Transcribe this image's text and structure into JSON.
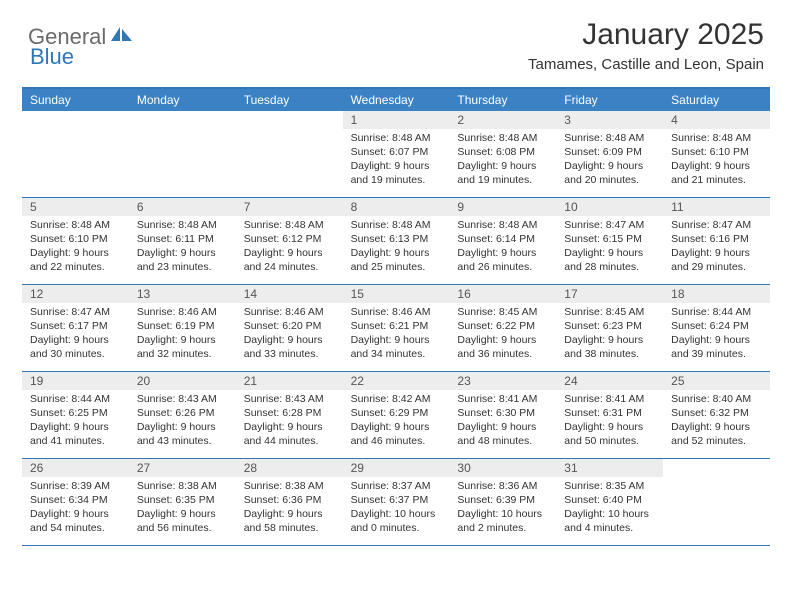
{
  "logo": {
    "text1": "General",
    "text2": "Blue",
    "color1": "#6b6b6b",
    "color2": "#2f77b6"
  },
  "header": {
    "month_title": "January 2025",
    "location": "Tamames, Castille and Leon, Spain"
  },
  "calendar": {
    "weekday_bg": "#3a82c4",
    "weekday_fg": "#ffffff",
    "border_color": "#2f77b6",
    "daynum_bg": "#ededed",
    "text_color": "#333333",
    "weekdays": [
      "Sunday",
      "Monday",
      "Tuesday",
      "Wednesday",
      "Thursday",
      "Friday",
      "Saturday"
    ],
    "weeks": [
      [
        {
          "empty": true
        },
        {
          "empty": true
        },
        {
          "empty": true
        },
        {
          "num": "1",
          "l1": "Sunrise: 8:48 AM",
          "l2": "Sunset: 6:07 PM",
          "l3": "Daylight: 9 hours",
          "l4": "and 19 minutes."
        },
        {
          "num": "2",
          "l1": "Sunrise: 8:48 AM",
          "l2": "Sunset: 6:08 PM",
          "l3": "Daylight: 9 hours",
          "l4": "and 19 minutes."
        },
        {
          "num": "3",
          "l1": "Sunrise: 8:48 AM",
          "l2": "Sunset: 6:09 PM",
          "l3": "Daylight: 9 hours",
          "l4": "and 20 minutes."
        },
        {
          "num": "4",
          "l1": "Sunrise: 8:48 AM",
          "l2": "Sunset: 6:10 PM",
          "l3": "Daylight: 9 hours",
          "l4": "and 21 minutes."
        }
      ],
      [
        {
          "num": "5",
          "l1": "Sunrise: 8:48 AM",
          "l2": "Sunset: 6:10 PM",
          "l3": "Daylight: 9 hours",
          "l4": "and 22 minutes."
        },
        {
          "num": "6",
          "l1": "Sunrise: 8:48 AM",
          "l2": "Sunset: 6:11 PM",
          "l3": "Daylight: 9 hours",
          "l4": "and 23 minutes."
        },
        {
          "num": "7",
          "l1": "Sunrise: 8:48 AM",
          "l2": "Sunset: 6:12 PM",
          "l3": "Daylight: 9 hours",
          "l4": "and 24 minutes."
        },
        {
          "num": "8",
          "l1": "Sunrise: 8:48 AM",
          "l2": "Sunset: 6:13 PM",
          "l3": "Daylight: 9 hours",
          "l4": "and 25 minutes."
        },
        {
          "num": "9",
          "l1": "Sunrise: 8:48 AM",
          "l2": "Sunset: 6:14 PM",
          "l3": "Daylight: 9 hours",
          "l4": "and 26 minutes."
        },
        {
          "num": "10",
          "l1": "Sunrise: 8:47 AM",
          "l2": "Sunset: 6:15 PM",
          "l3": "Daylight: 9 hours",
          "l4": "and 28 minutes."
        },
        {
          "num": "11",
          "l1": "Sunrise: 8:47 AM",
          "l2": "Sunset: 6:16 PM",
          "l3": "Daylight: 9 hours",
          "l4": "and 29 minutes."
        }
      ],
      [
        {
          "num": "12",
          "l1": "Sunrise: 8:47 AM",
          "l2": "Sunset: 6:17 PM",
          "l3": "Daylight: 9 hours",
          "l4": "and 30 minutes."
        },
        {
          "num": "13",
          "l1": "Sunrise: 8:46 AM",
          "l2": "Sunset: 6:19 PM",
          "l3": "Daylight: 9 hours",
          "l4": "and 32 minutes."
        },
        {
          "num": "14",
          "l1": "Sunrise: 8:46 AM",
          "l2": "Sunset: 6:20 PM",
          "l3": "Daylight: 9 hours",
          "l4": "and 33 minutes."
        },
        {
          "num": "15",
          "l1": "Sunrise: 8:46 AM",
          "l2": "Sunset: 6:21 PM",
          "l3": "Daylight: 9 hours",
          "l4": "and 34 minutes."
        },
        {
          "num": "16",
          "l1": "Sunrise: 8:45 AM",
          "l2": "Sunset: 6:22 PM",
          "l3": "Daylight: 9 hours",
          "l4": "and 36 minutes."
        },
        {
          "num": "17",
          "l1": "Sunrise: 8:45 AM",
          "l2": "Sunset: 6:23 PM",
          "l3": "Daylight: 9 hours",
          "l4": "and 38 minutes."
        },
        {
          "num": "18",
          "l1": "Sunrise: 8:44 AM",
          "l2": "Sunset: 6:24 PM",
          "l3": "Daylight: 9 hours",
          "l4": "and 39 minutes."
        }
      ],
      [
        {
          "num": "19",
          "l1": "Sunrise: 8:44 AM",
          "l2": "Sunset: 6:25 PM",
          "l3": "Daylight: 9 hours",
          "l4": "and 41 minutes."
        },
        {
          "num": "20",
          "l1": "Sunrise: 8:43 AM",
          "l2": "Sunset: 6:26 PM",
          "l3": "Daylight: 9 hours",
          "l4": "and 43 minutes."
        },
        {
          "num": "21",
          "l1": "Sunrise: 8:43 AM",
          "l2": "Sunset: 6:28 PM",
          "l3": "Daylight: 9 hours",
          "l4": "and 44 minutes."
        },
        {
          "num": "22",
          "l1": "Sunrise: 8:42 AM",
          "l2": "Sunset: 6:29 PM",
          "l3": "Daylight: 9 hours",
          "l4": "and 46 minutes."
        },
        {
          "num": "23",
          "l1": "Sunrise: 8:41 AM",
          "l2": "Sunset: 6:30 PM",
          "l3": "Daylight: 9 hours",
          "l4": "and 48 minutes."
        },
        {
          "num": "24",
          "l1": "Sunrise: 8:41 AM",
          "l2": "Sunset: 6:31 PM",
          "l3": "Daylight: 9 hours",
          "l4": "and 50 minutes."
        },
        {
          "num": "25",
          "l1": "Sunrise: 8:40 AM",
          "l2": "Sunset: 6:32 PM",
          "l3": "Daylight: 9 hours",
          "l4": "and 52 minutes."
        }
      ],
      [
        {
          "num": "26",
          "l1": "Sunrise: 8:39 AM",
          "l2": "Sunset: 6:34 PM",
          "l3": "Daylight: 9 hours",
          "l4": "and 54 minutes."
        },
        {
          "num": "27",
          "l1": "Sunrise: 8:38 AM",
          "l2": "Sunset: 6:35 PM",
          "l3": "Daylight: 9 hours",
          "l4": "and 56 minutes."
        },
        {
          "num": "28",
          "l1": "Sunrise: 8:38 AM",
          "l2": "Sunset: 6:36 PM",
          "l3": "Daylight: 9 hours",
          "l4": "and 58 minutes."
        },
        {
          "num": "29",
          "l1": "Sunrise: 8:37 AM",
          "l2": "Sunset: 6:37 PM",
          "l3": "Daylight: 10 hours",
          "l4": "and 0 minutes."
        },
        {
          "num": "30",
          "l1": "Sunrise: 8:36 AM",
          "l2": "Sunset: 6:39 PM",
          "l3": "Daylight: 10 hours",
          "l4": "and 2 minutes."
        },
        {
          "num": "31",
          "l1": "Sunrise: 8:35 AM",
          "l2": "Sunset: 6:40 PM",
          "l3": "Daylight: 10 hours",
          "l4": "and 4 minutes."
        },
        {
          "empty": true
        }
      ]
    ]
  }
}
